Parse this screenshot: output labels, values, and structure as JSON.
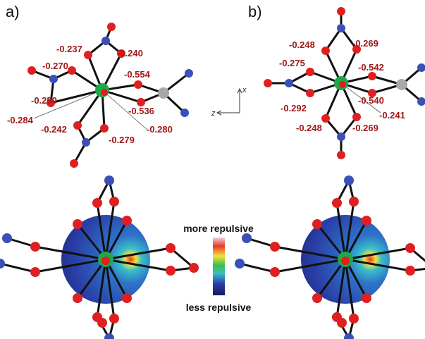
{
  "panels": [
    {
      "label": "a)",
      "charges": [
        "-0.237",
        "-0.240",
        "-0.270",
        "-0.554",
        "-0.250",
        "-0.284",
        "-0.242",
        "-0.536",
        "-0.280",
        "-0.279"
      ]
    },
    {
      "label": "b)",
      "charges": [
        "-0.248",
        "-0.269",
        "-0.275",
        "-0.542",
        "-0.540",
        "-0.292",
        "-0.241",
        "-0.248",
        "-0.269"
      ]
    }
  ],
  "axes": {
    "x": "x",
    "z": "z"
  },
  "scale": {
    "top": "more repulsive",
    "bottom": "less repulsive"
  }
}
